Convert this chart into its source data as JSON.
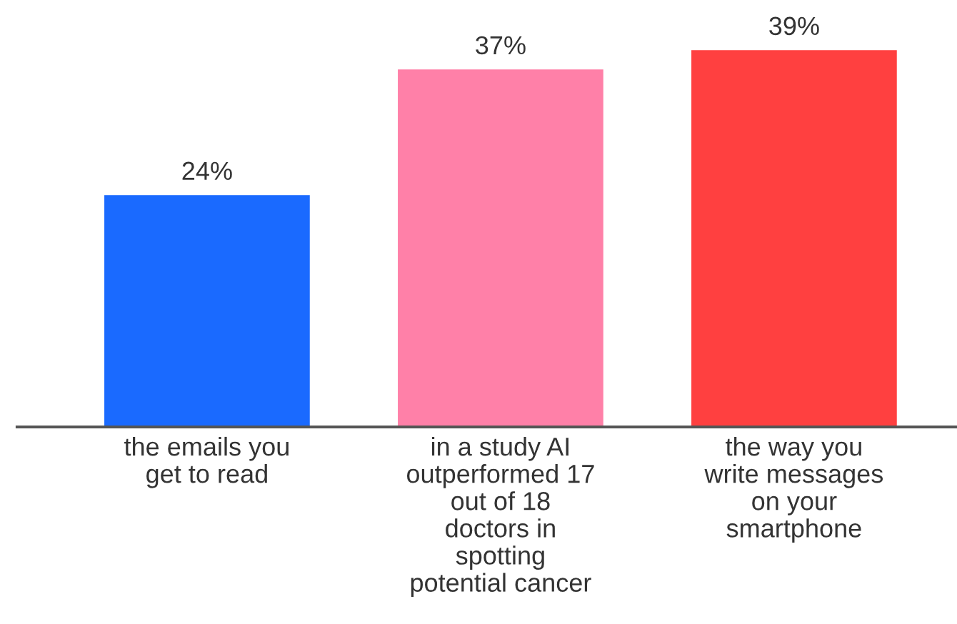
{
  "chart_data": {
    "type": "bar",
    "categories": [
      "the emails you\nget to read",
      "in a study AI\noutperformed 17\nout of 18\ndoctors in\nspotting\npotential cancer",
      "the way you\nwrite messages\non your\nsmartphone"
    ],
    "values": [
      24,
      37,
      39
    ],
    "colors": [
      "#1a6aff",
      "#ff80a8",
      "#ff4040"
    ],
    "value_labels": [
      "24%",
      "37%",
      "39%"
    ],
    "grid": false
  }
}
